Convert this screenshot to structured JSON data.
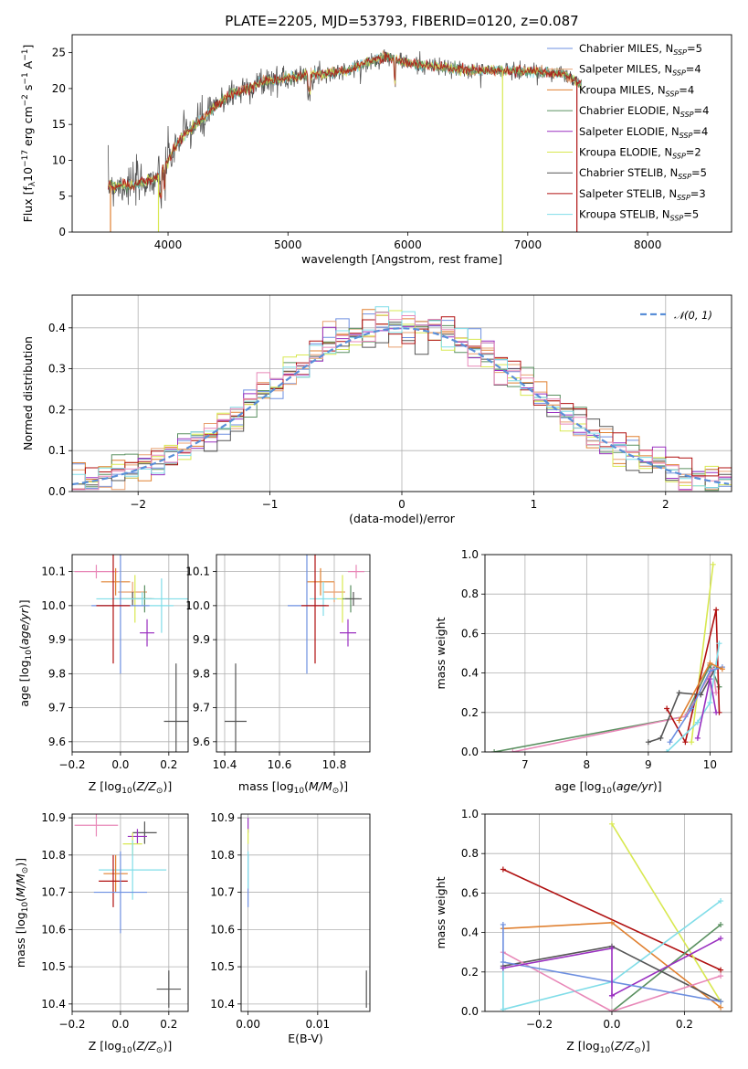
{
  "title": "PLATE=2205, MJD=53793, FIBERID=0120, z=0.087",
  "colors": {
    "chabrier_miles": "#6d8fe0",
    "salpeter_miles": "#e8a070",
    "kroupa_miles": "#e08030",
    "chabrier_elodie": "#5a9060",
    "salpeter_elodie": "#9a30c0",
    "kroupa_elodie": "#d8e850",
    "chabrier_stelib": "#555555",
    "salpeter_stelib": "#b01010",
    "kroupa_stelib": "#80dde8",
    "pink": "#e888b8",
    "gaussian": "#5a8fd8",
    "grid": "#b0b0b0"
  },
  "chart_data": [
    {
      "id": "spectrum",
      "type": "line",
      "xlabel": "wavelength [Angstrom, rest frame]",
      "ylabel": "Flux [f_λ10^-17 erg cm^-2 s^-1 A^-1]",
      "xlim": [
        3200,
        8700
      ],
      "ylim": [
        0,
        27.5
      ],
      "xticks": [
        "4000",
        "5000",
        "6000",
        "7000",
        "8000"
      ],
      "yticks": [
        "0",
        "5",
        "10",
        "15",
        "20",
        "25"
      ],
      "grid": false,
      "legend_position": "top-right",
      "legend": [
        {
          "text": "Chabrier MILES, N",
          "sub": "SSP",
          "tail": "=5",
          "color": "chabrier_miles"
        },
        {
          "text": "Salpeter MILES, N",
          "sub": "SSP",
          "tail": "=4",
          "color": "salpeter_miles"
        },
        {
          "text": "Kroupa MILES, N",
          "sub": "SSP",
          "tail": "=4",
          "color": "kroupa_miles"
        },
        {
          "text": "Chabrier ELODIE, N",
          "sub": "SSP",
          "tail": "=4",
          "color": "chabrier_elodie"
        },
        {
          "text": "Salpeter ELODIE, N",
          "sub": "SSP",
          "tail": "=4",
          "color": "salpeter_elodie"
        },
        {
          "text": "Kroupa ELODIE, N",
          "sub": "SSP",
          "tail": "=2",
          "color": "kroupa_elodie"
        },
        {
          "text": "Chabrier STELIB, N",
          "sub": "SSP",
          "tail": "=5",
          "color": "chabrier_stelib"
        },
        {
          "text": "Salpeter STELIB, N",
          "sub": "SSP",
          "tail": "=3",
          "color": "salpeter_stelib"
        },
        {
          "text": "Kroupa STELIB, N",
          "sub": "SSP",
          "tail": "=5",
          "color": "kroupa_stelib"
        }
      ],
      "continuum_anchors": [
        [
          3500,
          6.5
        ],
        [
          3700,
          6.5
        ],
        [
          3900,
          7.5
        ],
        [
          4000,
          10
        ],
        [
          4100,
          13
        ],
        [
          4300,
          16
        ],
        [
          4500,
          19
        ],
        [
          4800,
          21
        ],
        [
          5000,
          21.5
        ],
        [
          5500,
          22.5
        ],
        [
          5800,
          24.5
        ],
        [
          6000,
          23.5
        ],
        [
          6500,
          22.5
        ],
        [
          7000,
          22.5
        ],
        [
          7300,
          22
        ],
        [
          7450,
          20.5
        ]
      ],
      "drops": [
        [
          3520,
          "kroupa_miles"
        ],
        [
          3920,
          "kroupa_elodie"
        ],
        [
          6790,
          "kroupa_elodie"
        ],
        [
          7410,
          "salpeter_stelib"
        ]
      ]
    },
    {
      "id": "residuals",
      "type": "histogram",
      "xlabel": "(data-model)/error",
      "ylabel": "Normed distribution",
      "xlim": [
        -2.5,
        2.5
      ],
      "ylim": [
        0,
        0.48
      ],
      "xticks": [
        "−2",
        "−1",
        "0",
        "1",
        "2"
      ],
      "yticks": [
        "0.0",
        "0.1",
        "0.2",
        "0.3",
        "0.4"
      ],
      "grid": true,
      "bin_width": 0.1,
      "legend": "𝒩(0, 1)"
    },
    {
      "id": "age-z",
      "type": "scatter",
      "xlabel": "Z [log10(Z/Z⊙)]",
      "ylabel": "age [log10(age/yr)]",
      "xlim": [
        -0.2,
        0.28
      ],
      "ylim": [
        9.57,
        10.15
      ],
      "xticks": [
        "−0.2",
        "0.0",
        "0.2"
      ],
      "yticks": [
        "9.6",
        "9.7",
        "9.8",
        "9.9",
        "10.0",
        "10.1"
      ],
      "grid": true,
      "points": [
        {
          "x": -0.1,
          "y": 10.1,
          "xerr": 0.09,
          "yerr": 0.02,
          "color": "pink"
        },
        {
          "x": -0.02,
          "y": 10.07,
          "xerr": 0.06,
          "yerr": 0.04,
          "color": "kroupa_miles"
        },
        {
          "x": 0.05,
          "y": 10.04,
          "xerr": 0.06,
          "yerr": 0.03,
          "color": "salpeter_miles"
        },
        {
          "x": 0.06,
          "y": 10.02,
          "xerr": 0.05,
          "yerr": 0.07,
          "color": "kroupa_elodie"
        },
        {
          "x": 0.1,
          "y": 10.02,
          "xerr": 0.04,
          "yerr": 0.04,
          "color": "chabrier_elodie"
        },
        {
          "x": 0.05,
          "y": 10.02,
          "xerr": 0.08,
          "yerr": 0.02,
          "color": "chabrier_stelib"
        },
        {
          "x": 0.09,
          "y": 10.02,
          "xerr": 0.19,
          "yerr": 0.02,
          "color": "kroupa_stelib"
        },
        {
          "x": 0.17,
          "y": 10.0,
          "xerr": 0.05,
          "yerr": 0.08,
          "color": "kroupa_stelib"
        },
        {
          "x": 0.0,
          "y": 10.0,
          "xerr": 0.12,
          "yerr": 0.2,
          "color": "chabrier_miles"
        },
        {
          "x": -0.03,
          "y": 10.0,
          "xerr": 0.07,
          "yerr": 0.17,
          "color": "salpeter_stelib"
        },
        {
          "x": 0.11,
          "y": 9.92,
          "xerr": 0.03,
          "yerr": 0.04,
          "color": "salpeter_elodie"
        },
        {
          "x": 0.23,
          "y": 9.66,
          "xerr": 0.05,
          "yerr": 0.17,
          "color": "chabrier_stelib"
        }
      ]
    },
    {
      "id": "age-mass",
      "type": "scatter",
      "xlabel": "mass [log10(M/M⊙)]",
      "ylabel": "",
      "xlim": [
        10.37,
        10.93
      ],
      "ylim": [
        9.57,
        10.15
      ],
      "xticks": [
        "10.4",
        "10.6",
        "10.8"
      ],
      "yticks": [
        "9.6",
        "9.7",
        "9.8",
        "9.9",
        "10.0",
        "10.1"
      ],
      "grid": true,
      "points": [
        {
          "x": 10.88,
          "y": 10.1,
          "xerr": 0.03,
          "yerr": 0.02,
          "color": "pink"
        },
        {
          "x": 10.75,
          "y": 10.07,
          "xerr": 0.05,
          "yerr": 0.04,
          "color": "kroupa_miles"
        },
        {
          "x": 10.8,
          "y": 10.04,
          "xerr": 0.04,
          "yerr": 0.03,
          "color": "salpeter_miles"
        },
        {
          "x": 10.83,
          "y": 10.02,
          "xerr": 0.03,
          "yerr": 0.07,
          "color": "kroupa_elodie"
        },
        {
          "x": 10.86,
          "y": 10.02,
          "xerr": 0.03,
          "yerr": 0.04,
          "color": "chabrier_elodie"
        },
        {
          "x": 10.87,
          "y": 10.02,
          "xerr": 0.03,
          "yerr": 0.02,
          "color": "chabrier_stelib"
        },
        {
          "x": 10.76,
          "y": 10.02,
          "xerr": 0.05,
          "yerr": 0.05,
          "color": "kroupa_stelib"
        },
        {
          "x": 10.7,
          "y": 10.0,
          "xerr": 0.07,
          "yerr": 0.2,
          "color": "chabrier_miles"
        },
        {
          "x": 10.73,
          "y": 10.0,
          "xerr": 0.05,
          "yerr": 0.17,
          "color": "salpeter_stelib"
        },
        {
          "x": 10.85,
          "y": 9.92,
          "xerr": 0.03,
          "yerr": 0.04,
          "color": "salpeter_elodie"
        },
        {
          "x": 10.44,
          "y": 9.66,
          "xerr": 0.04,
          "yerr": 0.17,
          "color": "chabrier_stelib"
        }
      ]
    },
    {
      "id": "mw-age",
      "type": "line",
      "xlabel": "age [log10(age/yr)]",
      "ylabel": "mass weight",
      "xlim": [
        6.35,
        10.35
      ],
      "ylim": [
        0,
        1.0
      ],
      "xticks": [
        "7",
        "8",
        "9",
        "10"
      ],
      "yticks": [
        "0.0",
        "0.2",
        "0.4",
        "0.6",
        "0.8",
        "1.0"
      ],
      "grid": true,
      "series": [
        {
          "color": "chabrier_elodie",
          "x": [
            6.5,
            9.6,
            10.0,
            10.15
          ],
          "y": [
            0.0,
            0.18,
            0.44,
            0.33
          ]
        },
        {
          "color": "pink",
          "x": [
            6.8,
            9.6,
            10.05,
            10.1
          ],
          "y": [
            0.0,
            0.18,
            0.42,
            0.3
          ]
        },
        {
          "color": "kroupa_elodie",
          "x": [
            9.7,
            10.05
          ],
          "y": [
            0.05,
            0.95
          ]
        },
        {
          "color": "salpeter_stelib",
          "x": [
            9.3,
            9.6,
            10.1,
            10.15
          ],
          "y": [
            0.22,
            0.05,
            0.72,
            0.2
          ]
        },
        {
          "color": "chabrier_stelib",
          "x": [
            9.0,
            9.2,
            9.5,
            9.85,
            10.1
          ],
          "y": [
            0.05,
            0.07,
            0.3,
            0.29,
            0.43
          ]
        },
        {
          "color": "kroupa_stelib",
          "x": [
            9.3,
            9.8,
            10.0,
            10.15
          ],
          "y": [
            0.0,
            0.15,
            0.25,
            0.55
          ]
        },
        {
          "color": "chabrier_miles",
          "x": [
            9.35,
            9.7,
            10.0,
            10.2
          ],
          "y": [
            0.05,
            0.22,
            0.41,
            0.43
          ]
        },
        {
          "color": "salpeter_elodie",
          "x": [
            9.8,
            10.0,
            10.1
          ],
          "y": [
            0.07,
            0.37,
            0.2
          ]
        },
        {
          "color": "kroupa_miles",
          "x": [
            9.5,
            10.0,
            10.2
          ],
          "y": [
            0.16,
            0.45,
            0.42
          ]
        }
      ]
    },
    {
      "id": "mass-z",
      "type": "scatter",
      "xlabel": "Z [log10(Z/Z⊙)]",
      "ylabel": "mass [log10(M/M⊙)]",
      "xlim": [
        -0.2,
        0.28
      ],
      "ylim": [
        10.38,
        10.91
      ],
      "xticks": [
        "−0.2",
        "0.0",
        "0.2"
      ],
      "yticks": [
        "10.4",
        "10.5",
        "10.6",
        "10.7",
        "10.8",
        "10.9"
      ],
      "grid": true,
      "points": [
        {
          "x": -0.1,
          "y": 10.88,
          "xerr": 0.09,
          "yerr": 0.03,
          "color": "pink"
        },
        {
          "x": 0.1,
          "y": 10.86,
          "xerr": 0.05,
          "yerr": 0.03,
          "color": "chabrier_stelib"
        },
        {
          "x": 0.07,
          "y": 10.85,
          "xerr": 0.04,
          "yerr": 0.02,
          "color": "salpeter_elodie"
        },
        {
          "x": 0.05,
          "y": 10.83,
          "xerr": 0.04,
          "yerr": 0.03,
          "color": "kroupa_elodie"
        },
        {
          "x": 0.05,
          "y": 10.76,
          "xerr": 0.14,
          "yerr": 0.08,
          "color": "kroupa_stelib"
        },
        {
          "x": -0.02,
          "y": 10.75,
          "xerr": 0.05,
          "yerr": 0.05,
          "color": "kroupa_miles"
        },
        {
          "x": -0.03,
          "y": 10.73,
          "xerr": 0.06,
          "yerr": 0.07,
          "color": "salpeter_stelib"
        },
        {
          "x": 0.0,
          "y": 10.7,
          "xerr": 0.11,
          "yerr": 0.11,
          "color": "chabrier_miles"
        },
        {
          "x": 0.2,
          "y": 10.44,
          "xerr": 0.05,
          "yerr": 0.05,
          "color": "chabrier_stelib"
        }
      ]
    },
    {
      "id": "mass-ebv",
      "type": "scatter",
      "xlabel": "E(B-V)",
      "ylabel": "",
      "xlim": [
        -0.001,
        0.0175
      ],
      "ylim": [
        10.38,
        10.91
      ],
      "xticks": [
        "0.00",
        "0.01"
      ],
      "yticks": [
        "10.4",
        "10.5",
        "10.6",
        "10.7",
        "10.8",
        "10.9"
      ],
      "grid": true,
      "points": [
        {
          "x": 0.0,
          "y": 10.88,
          "xerr": 0,
          "yerr": 0.02,
          "color": "salpeter_elodie"
        },
        {
          "x": 0.0,
          "y": 10.85,
          "xerr": 0,
          "yerr": 0.02,
          "color": "kroupa_elodie"
        },
        {
          "x": 0.0,
          "y": 10.73,
          "xerr": 0,
          "yerr": 0.07,
          "color": "chabrier_miles"
        },
        {
          "x": 0.0,
          "y": 10.76,
          "xerr": 0,
          "yerr": 0.05,
          "color": "kroupa_stelib"
        },
        {
          "x": 0.017,
          "y": 10.44,
          "xerr": 0,
          "yerr": 0.05,
          "color": "chabrier_stelib"
        }
      ]
    },
    {
      "id": "mw-z",
      "type": "line",
      "xlabel": "Z [log10(Z/Z⊙)]",
      "ylabel": "mass weight",
      "xlim": [
        -0.35,
        0.33
      ],
      "ylim": [
        0,
        1.0
      ],
      "xticks": [
        "−0.2",
        "0.0",
        "0.2"
      ],
      "yticks": [
        "0.0",
        "0.2",
        "0.4",
        "0.6",
        "0.8",
        "1.0"
      ],
      "grid": true,
      "series": [
        {
          "color": "salpeter_stelib",
          "x": [
            -0.3,
            0.3
          ],
          "y": [
            0.72,
            0.21
          ]
        },
        {
          "color": "kroupa_elodie",
          "x": [
            0.0,
            0.3
          ],
          "y": [
            0.95,
            0.05
          ]
        },
        {
          "color": "kroupa_miles",
          "x": [
            -0.3,
            0.0,
            0.3
          ],
          "y": [
            0.42,
            0.45,
            0.02
          ]
        },
        {
          "color": "kroupa_stelib",
          "x": [
            -0.3,
            -0.3,
            0.0,
            0.3
          ],
          "y": [
            0.22,
            0.01,
            0.15,
            0.56
          ]
        },
        {
          "color": "chabrier_elodie",
          "x": [
            0.0,
            0.3
          ],
          "y": [
            0.0,
            0.44
          ]
        },
        {
          "color": "salpeter_elodie",
          "x": [
            0.0,
            0.3
          ],
          "y": [
            0.08,
            0.37
          ]
        },
        {
          "color": "chabrier_stelib",
          "x": [
            -0.3,
            0.0,
            0.3
          ],
          "y": [
            0.23,
            0.33,
            0.05
          ]
        },
        {
          "color": "pink",
          "x": [
            -0.3,
            0.0,
            0.3
          ],
          "y": [
            0.3,
            0.0,
            0.18
          ]
        },
        {
          "color": "chabrier_miles",
          "x": [
            -0.3,
            -0.3,
            0.3
          ],
          "y": [
            0.44,
            0.25,
            0.05
          ]
        },
        {
          "color": "salpeter_elodie",
          "x": [
            -0.3,
            0.0,
            0.0
          ],
          "y": [
            0.22,
            0.32,
            0.08
          ]
        }
      ]
    }
  ]
}
